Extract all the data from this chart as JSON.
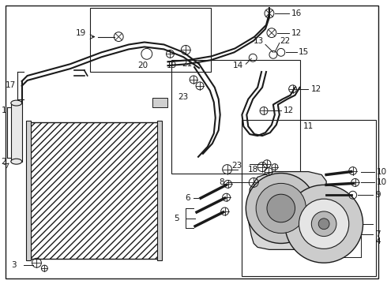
{
  "bg_color": "#ffffff",
  "line_color": "#1a1a1a",
  "font_size": 7.5,
  "fig_w": 4.9,
  "fig_h": 3.6,
  "dpi": 100
}
